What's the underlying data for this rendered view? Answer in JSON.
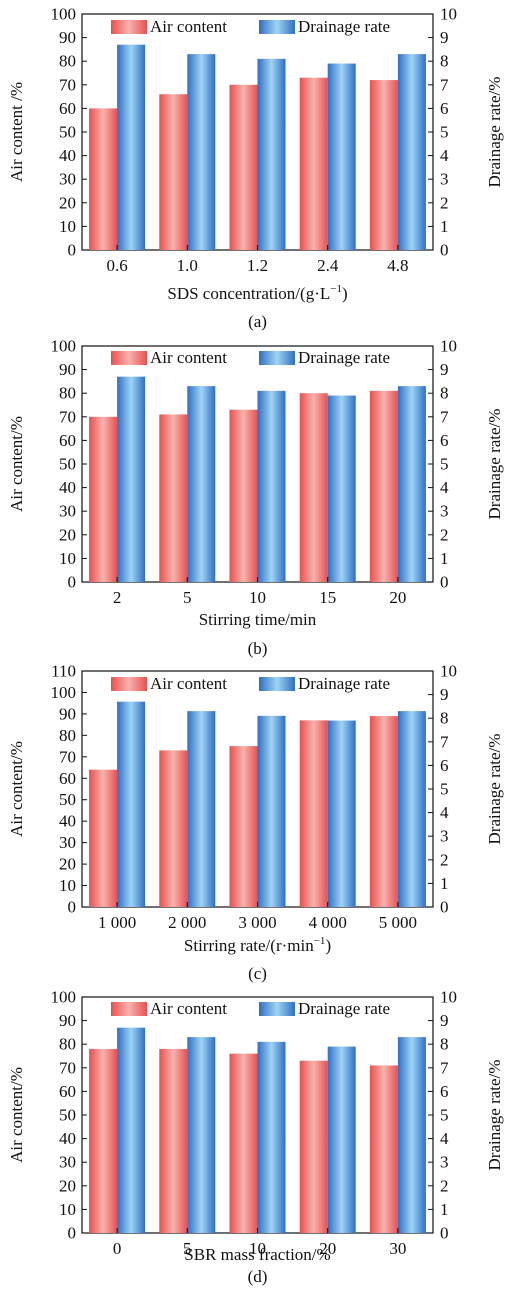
{
  "colors": {
    "air": "#e8504f",
    "air_light": "#f7b3ae",
    "drain": "#2f6fc3",
    "drain_light": "#9fd4f5",
    "axis": "#111111"
  },
  "chart_data": [
    {
      "type": "bar",
      "panel_label": "(a)",
      "xlabel": "SDS concentration/(g·L",
      "xlabel_sup": "−1",
      "xlabel_after": ")",
      "ylabel": "Air content /%",
      "y2label": "Drainage rate/%",
      "categories": [
        "0.6",
        "1.0",
        "1.2",
        "2.4",
        "4.8"
      ],
      "ylim": [
        0,
        100
      ],
      "y_ticks": [
        "0",
        "10",
        "20",
        "30",
        "40",
        "50",
        "60",
        "70",
        "80",
        "90",
        "100"
      ],
      "y2lim": [
        0,
        10
      ],
      "y2_ticks": [
        "0",
        "1",
        "2",
        "3",
        "4",
        "5",
        "6",
        "7",
        "8",
        "9",
        "10"
      ],
      "legend": "top",
      "series": [
        {
          "name": "Air content",
          "axis": "left",
          "values": [
            60,
            66,
            70,
            73,
            72
          ]
        },
        {
          "name": "Drainage rate",
          "axis": "right",
          "values": [
            8.7,
            8.3,
            8.1,
            7.9,
            8.3
          ]
        }
      ]
    },
    {
      "type": "bar",
      "panel_label": "(b)",
      "xlabel": "Stirring time/min",
      "ylabel": "Air content/%",
      "y2label": "Drainage rate/%",
      "categories": [
        "2",
        "5",
        "10",
        "15",
        "20"
      ],
      "ylim": [
        0,
        100
      ],
      "y_ticks": [
        "0",
        "10",
        "20",
        "30",
        "40",
        "50",
        "60",
        "70",
        "80",
        "90",
        "100"
      ],
      "y2lim": [
        0,
        10
      ],
      "y2_ticks": [
        "0",
        "1",
        "2",
        "3",
        "4",
        "5",
        "6",
        "7",
        "8",
        "9",
        "10"
      ],
      "legend": "top",
      "series": [
        {
          "name": "Air content",
          "axis": "left",
          "values": [
            70,
            71,
            73,
            80,
            81
          ]
        },
        {
          "name": "Drainage rate",
          "axis": "right",
          "values": [
            8.7,
            8.3,
            8.1,
            7.9,
            8.3
          ]
        }
      ]
    },
    {
      "type": "bar",
      "panel_label": "(c)",
      "xlabel": "Stirring rate/(r·min",
      "xlabel_sup": "−1",
      "xlabel_after": ")",
      "ylabel": "Air content/%",
      "y2label": "Drainage rate/%",
      "categories": [
        "1 000",
        "2 000",
        "3 000",
        "4 000",
        "5 000"
      ],
      "ylim": [
        0,
        110
      ],
      "y_ticks": [
        "0",
        "10",
        "20",
        "30",
        "40",
        "50",
        "60",
        "70",
        "80",
        "90",
        "100",
        "110"
      ],
      "y2lim": [
        0,
        10
      ],
      "y2_ticks": [
        "0",
        "1",
        "2",
        "3",
        "4",
        "5",
        "6",
        "7",
        "8",
        "9",
        "10"
      ],
      "legend": "top",
      "series": [
        {
          "name": "Air content",
          "axis": "left",
          "values": [
            64,
            73,
            75,
            87,
            89
          ]
        },
        {
          "name": "Drainage rate",
          "axis": "right",
          "values": [
            8.7,
            8.3,
            8.1,
            7.9,
            8.3
          ]
        }
      ]
    },
    {
      "type": "bar",
      "panel_label": "(d)",
      "xlabel": "SBR mass fraction/%",
      "ylabel": "Air content/%",
      "y2label": "Drainage rate/%",
      "categories": [
        "0",
        "5",
        "10",
        "20",
        "30"
      ],
      "ylim": [
        0,
        100
      ],
      "y_ticks": [
        "0",
        "10",
        "20",
        "30",
        "40",
        "50",
        "60",
        "70",
        "80",
        "90",
        "100"
      ],
      "y2lim": [
        0,
        10
      ],
      "y2_ticks": [
        "0",
        "1",
        "2",
        "3",
        "4",
        "5",
        "6",
        "7",
        "8",
        "9",
        "10"
      ],
      "legend": "top",
      "series": [
        {
          "name": "Air content",
          "axis": "left",
          "values": [
            78,
            78,
            76,
            73,
            71
          ]
        },
        {
          "name": "Drainage rate",
          "axis": "right",
          "values": [
            8.7,
            8.3,
            8.1,
            7.9,
            8.3
          ]
        }
      ]
    }
  ]
}
